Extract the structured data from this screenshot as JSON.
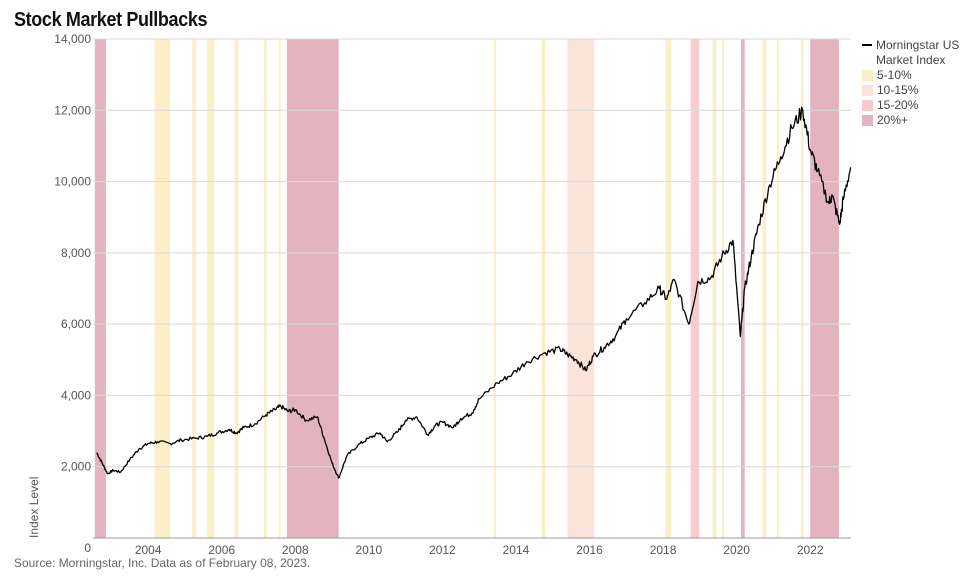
{
  "title": "Stock Market Pullbacks",
  "source": "Source: Morningstar, Inc. Data as of February 08, 2023.",
  "colors": {
    "line": "#000000",
    "grid": "#d9d9d9",
    "band_5_10": "#fbefc8",
    "band_10_15": "#fbe3da",
    "band_15_20": "#f8cccf",
    "band_20_plus": "#e3b3bf"
  },
  "chart_data": {
    "type": "line",
    "title": "Stock Market Pullbacks",
    "ylabel": "Index Level",
    "xlabel": "",
    "xlim": [
      2002.5,
      2023.11
    ],
    "ylim": [
      0,
      14000
    ],
    "y_ticks": [
      0,
      2000,
      4000,
      6000,
      8000,
      10000,
      12000,
      14000
    ],
    "y_tick_labels": [
      "0",
      "2,000",
      "4,000",
      "6,000",
      "8,000",
      "10,000",
      "12,000",
      "14,000"
    ],
    "x_ticks": [
      2004,
      2006,
      2008,
      2010,
      2012,
      2014,
      2016,
      2018,
      2020,
      2022
    ],
    "x_tick_labels": [
      "2004",
      "2006",
      "2008",
      "2010",
      "2012",
      "2014",
      "2016",
      "2018",
      "2020",
      "2022"
    ],
    "grid": "horizontal",
    "legend_position": "right",
    "series": [
      {
        "name": "Morningstar US Market Index",
        "x": [
          2002.6,
          2002.75,
          2002.9,
          2003.05,
          2003.25,
          2003.5,
          2003.75,
          2004.0,
          2004.25,
          2004.6,
          2004.9,
          2005.3,
          2005.6,
          2005.9,
          2006.2,
          2006.4,
          2006.6,
          2006.9,
          2007.2,
          2007.45,
          2007.6,
          2007.8,
          2008.0,
          2008.3,
          2008.6,
          2008.8,
          2009.0,
          2009.18,
          2009.4,
          2009.7,
          2010.0,
          2010.3,
          2010.5,
          2010.8,
          2011.0,
          2011.3,
          2011.6,
          2011.8,
          2012.0,
          2012.3,
          2012.5,
          2012.8,
          2013.0,
          2013.5,
          2013.9,
          2014.3,
          2014.8,
          2015.2,
          2015.4,
          2015.65,
          2015.9,
          2016.1,
          2016.4,
          2016.7,
          2017.0,
          2017.5,
          2017.9,
          2018.1,
          2018.3,
          2018.7,
          2018.95,
          2019.3,
          2019.6,
          2019.9,
          2020.1,
          2020.22,
          2020.4,
          2020.6,
          2020.9,
          2021.2,
          2021.5,
          2021.8,
          2022.0,
          2022.2,
          2022.5,
          2022.6,
          2022.8,
          2022.9,
          2023.1
        ],
        "y": [
          2400,
          2100,
          1800,
          1900,
          1850,
          2200,
          2500,
          2650,
          2700,
          2650,
          2750,
          2800,
          2850,
          2950,
          3050,
          2950,
          3100,
          3200,
          3450,
          3600,
          3700,
          3550,
          3600,
          3300,
          3400,
          2750,
          2100,
          1680,
          2300,
          2600,
          2800,
          2950,
          2700,
          3000,
          3300,
          3400,
          2900,
          3150,
          3250,
          3100,
          3350,
          3500,
          3900,
          4350,
          4600,
          4950,
          5200,
          5300,
          5150,
          5000,
          4700,
          5100,
          5350,
          5650,
          6150,
          6600,
          7000,
          6700,
          7250,
          6000,
          7200,
          7300,
          7900,
          8350,
          5650,
          7000,
          7900,
          8800,
          9900,
          10700,
          11500,
          12000,
          10900,
          10300,
          9400,
          9600,
          8800,
          9500,
          10400
        ]
      }
    ],
    "bands": [
      {
        "start": 2002.55,
        "end": 2002.85,
        "category": "20%+"
      },
      {
        "start": 2004.17,
        "end": 2004.6,
        "category": "5-10%"
      },
      {
        "start": 2005.2,
        "end": 2005.3,
        "category": "5-10%"
      },
      {
        "start": 2005.6,
        "end": 2005.8,
        "category": "5-10%"
      },
      {
        "start": 2006.35,
        "end": 2006.45,
        "category": "5-10%"
      },
      {
        "start": 2007.15,
        "end": 2007.22,
        "category": "5-10%"
      },
      {
        "start": 2007.55,
        "end": 2007.6,
        "category": "5-10%"
      },
      {
        "start": 2007.77,
        "end": 2009.18,
        "category": "20%+"
      },
      {
        "start": 2013.4,
        "end": 2013.45,
        "category": "5-10%"
      },
      {
        "start": 2014.7,
        "end": 2014.8,
        "category": "5-10%"
      },
      {
        "start": 2015.4,
        "end": 2016.12,
        "category": "10-15%"
      },
      {
        "start": 2018.07,
        "end": 2018.22,
        "category": "5-10%"
      },
      {
        "start": 2018.75,
        "end": 2018.98,
        "category": "15-20%"
      },
      {
        "start": 2019.35,
        "end": 2019.45,
        "category": "5-10%"
      },
      {
        "start": 2019.6,
        "end": 2019.65,
        "category": "5-10%"
      },
      {
        "start": 2020.12,
        "end": 2020.22,
        "category": "20%+"
      },
      {
        "start": 2020.7,
        "end": 2020.8,
        "category": "5-10%"
      },
      {
        "start": 2021.1,
        "end": 2021.15,
        "category": "5-10%"
      },
      {
        "start": 2021.75,
        "end": 2021.82,
        "category": "5-10%"
      },
      {
        "start": 2022.0,
        "end": 2022.78,
        "category": "20%+"
      }
    ],
    "legend": [
      {
        "label": "Morningstar US Market Index",
        "kind": "line",
        "color_key": "line"
      },
      {
        "label": "5-10%",
        "kind": "box",
        "color_key": "band_5_10"
      },
      {
        "label": "10-15%",
        "kind": "box",
        "color_key": "band_10_15"
      },
      {
        "label": "15-20%",
        "kind": "box",
        "color_key": "band_15_20"
      },
      {
        "label": "20%+",
        "kind": "box",
        "color_key": "band_20_plus"
      }
    ]
  }
}
